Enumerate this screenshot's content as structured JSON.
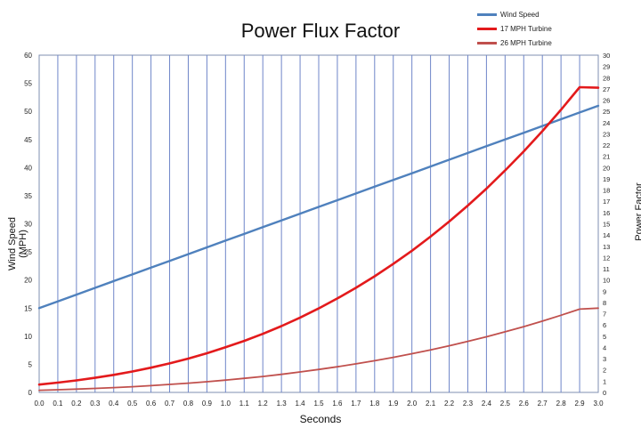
{
  "chart_data": {
    "type": "line",
    "title": "Power Flux Factor",
    "xlabel": "Seconds",
    "ylabel_left": "Wind Speed (MPH)",
    "ylabel_right": "Power Factor",
    "x": [
      0.0,
      0.1,
      0.2,
      0.3,
      0.4,
      0.5,
      0.6,
      0.7,
      0.8,
      0.9,
      1.0,
      1.1,
      1.2,
      1.3,
      1.4,
      1.5,
      1.6,
      1.7,
      1.8,
      1.9,
      2.0,
      2.1,
      2.2,
      2.3,
      2.4,
      2.5,
      2.6,
      2.7,
      2.8,
      2.9,
      3.0
    ],
    "x_tick_labels": [
      "0.0",
      "0.1",
      "0.2",
      "0.3",
      "0.4",
      "0.5",
      "0.6",
      "0.7",
      "0.8",
      "0.9",
      "1.0",
      "1.1",
      "1.2",
      "1.3",
      "1.4",
      "1.5",
      "1.6",
      "1.7",
      "1.8",
      "1.9",
      "2.0",
      "2.1",
      "2.2",
      "2.3",
      "2.4",
      "2.5",
      "2.6",
      "2.7",
      "2.8",
      "2.9",
      "3.0"
    ],
    "ylim_left": [
      0,
      60
    ],
    "yticks_left": [
      "0",
      "5",
      "10",
      "15",
      "20",
      "25",
      "30",
      "35",
      "40",
      "45",
      "50",
      "55",
      "60"
    ],
    "ylim_right": [
      0,
      30
    ],
    "yticks_right": [
      "0",
      "1",
      "2",
      "3",
      "4",
      "5",
      "6",
      "7",
      "8",
      "9",
      "10",
      "11",
      "12",
      "13",
      "14",
      "15",
      "16",
      "17",
      "18",
      "19",
      "20",
      "21",
      "22",
      "23",
      "24",
      "25",
      "26",
      "27",
      "28",
      "29",
      "30"
    ],
    "grid": "vertical",
    "legend_position": "top-right",
    "series": [
      {
        "name": "Wind Speed",
        "axis": "left",
        "color": "#4f81bd",
        "values": [
          15.0,
          16.2,
          17.4,
          18.6,
          19.8,
          21.0,
          22.2,
          23.4,
          24.6,
          25.8,
          27.0,
          28.2,
          29.4,
          30.6,
          31.8,
          33.0,
          34.2,
          35.4,
          36.6,
          37.8,
          39.0,
          40.2,
          41.4,
          42.6,
          43.8,
          45.0,
          46.2,
          47.4,
          48.6,
          49.8,
          51.0
        ]
      },
      {
        "name": "17 MPH Turbine",
        "axis": "right",
        "color": "#e31a1c",
        "values": [
          0.7,
          0.87,
          1.07,
          1.3,
          1.56,
          1.86,
          2.2,
          2.58,
          3.01,
          3.48,
          4.01,
          4.58,
          5.21,
          5.9,
          6.66,
          7.47,
          8.36,
          9.31,
          10.33,
          11.43,
          12.6,
          13.86,
          15.2,
          16.62,
          18.13,
          19.74,
          21.44,
          23.24,
          25.14,
          27.15,
          27.1
        ]
      },
      {
        "name": "26 MPH Turbine",
        "axis": "right",
        "color": "#c0504d",
        "values": [
          0.19,
          0.24,
          0.29,
          0.36,
          0.43,
          0.51,
          0.6,
          0.71,
          0.82,
          0.95,
          1.09,
          1.25,
          1.42,
          1.61,
          1.82,
          2.04,
          2.28,
          2.54,
          2.82,
          3.12,
          3.44,
          3.78,
          4.15,
          4.54,
          4.95,
          5.39,
          5.85,
          6.34,
          6.86,
          7.41,
          7.5
        ]
      }
    ]
  }
}
